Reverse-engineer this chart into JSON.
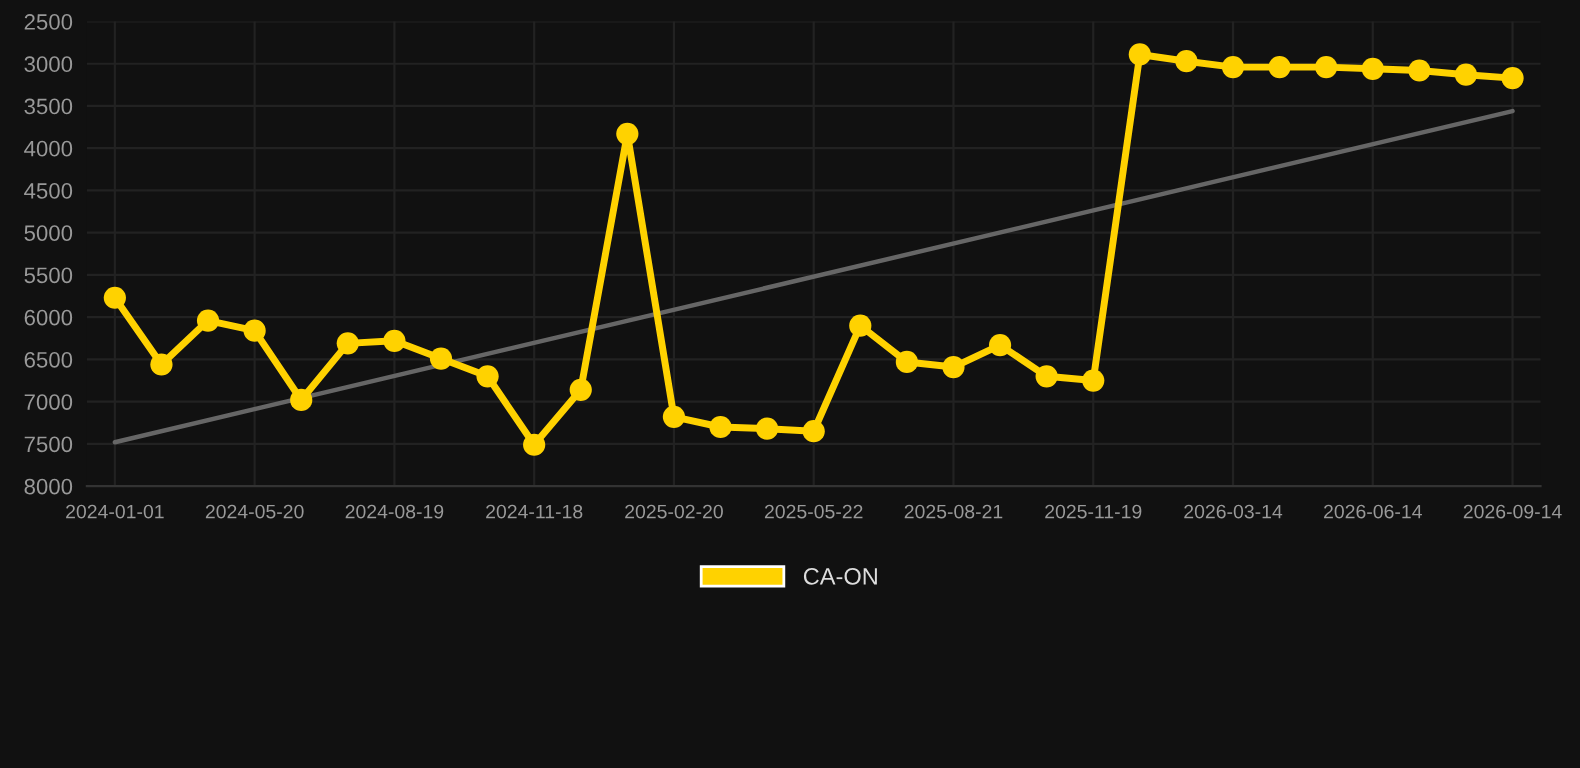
{
  "chart_data": {
    "type": "line",
    "categories": [
      "2024-01-01",
      null,
      null,
      "2024-05-20",
      null,
      null,
      "2024-08-19",
      null,
      null,
      "2024-11-18",
      null,
      null,
      "2025-02-20",
      null,
      null,
      "2025-05-22",
      null,
      null,
      "2025-08-21",
      null,
      null,
      "2025-11-19",
      null,
      null,
      "2026-03-14",
      null,
      null,
      "2026-06-14",
      null,
      null,
      "2026-09-14"
    ],
    "series": [
      {
        "name": "CA-ON",
        "color": "#ffd200",
        "marker": "circle",
        "values": [
          5770,
          6560,
          6040,
          6160,
          6980,
          6310,
          6280,
          6490,
          6700,
          7510,
          6860,
          3830,
          7180,
          7300,
          7320,
          7350,
          6100,
          6530,
          6590,
          6330,
          6700,
          6750,
          2890,
          2970,
          3040,
          3040,
          3040,
          3060,
          3080,
          3130,
          3170
        ]
      },
      {
        "type": "line",
        "color": "#666666",
        "marker": "none",
        "values": [
          7480,
          null,
          null,
          null,
          null,
          null,
          null,
          null,
          null,
          null,
          null,
          null,
          null,
          null,
          null,
          null,
          null,
          null,
          null,
          null,
          null,
          null,
          null,
          null,
          null,
          null,
          null,
          null,
          null,
          null,
          3560
        ]
      }
    ],
    "ylim": [
      8000,
      2500
    ],
    "yticks": [
      2500,
      3000,
      3500,
      4000,
      4500,
      5000,
      5500,
      6000,
      6500,
      7000,
      7500,
      8000
    ],
    "grid": true,
    "legend": "bottom"
  }
}
